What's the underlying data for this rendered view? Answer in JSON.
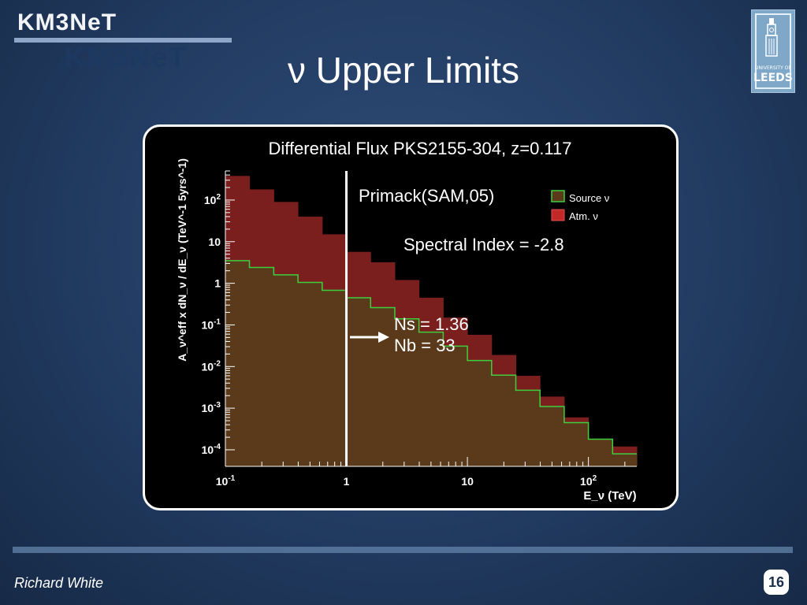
{
  "header": {
    "logo_text": "KM3NeT",
    "logo_shadow_text": "KM3NeT",
    "slide_title": "ν Upper Limits",
    "university_line1": "UNIVERSITY OF",
    "university_line2": "LEEDS"
  },
  "footer": {
    "author": "Richard White",
    "page_number": "16"
  },
  "chart_data": {
    "type": "area",
    "title": "Differential Flux PKS2155-304, z=0.117",
    "ylabel": "A_ν^eff x dN_ν / dE_ν (TeV^-1 5yrs^-1)",
    "xlabel": "E_ν (TeV)",
    "x_scale": "log",
    "y_scale": "log",
    "xlim": [
      0.1,
      251
    ],
    "ylim": [
      4e-05,
      500
    ],
    "x_ticks": [
      {
        "value": 0.1,
        "label": "10^-1"
      },
      {
        "value": 1,
        "label": "1"
      },
      {
        "value": 10,
        "label": "10"
      },
      {
        "value": 100,
        "label": "10^2"
      }
    ],
    "y_ticks": [
      {
        "value": 0.0001,
        "label": "10^-4"
      },
      {
        "value": 0.001,
        "label": "10^-3"
      },
      {
        "value": 0.01,
        "label": "10^-2"
      },
      {
        "value": 0.1,
        "label": "10^-1"
      },
      {
        "value": 1,
        "label": "1"
      },
      {
        "value": 10,
        "label": "10"
      },
      {
        "value": 100,
        "label": "10^2"
      }
    ],
    "bin_edges": [
      0.1,
      0.158,
      0.251,
      0.398,
      0.631,
      1.0,
      1.585,
      2.512,
      3.981,
      6.31,
      10.0,
      15.85,
      25.12,
      39.81,
      63.1,
      100.0,
      158.5,
      251.2
    ],
    "series": [
      {
        "name": "Atm. ν",
        "color": "#7a1e1e",
        "values": [
          380,
          180,
          90,
          40,
          15,
          5.7,
          3.2,
          1.2,
          0.45,
          0.15,
          0.058,
          0.019,
          0.006,
          0.0019,
          0.0006,
          0.00017,
          0.00012
        ]
      },
      {
        "name": "Source ν",
        "color": "#5a3a1a",
        "line_color": "#3ecf3e",
        "values": [
          3.5,
          2.4,
          1.6,
          1.05,
          0.68,
          0.45,
          0.26,
          0.14,
          0.067,
          0.031,
          0.014,
          0.0062,
          0.0027,
          0.0011,
          0.00045,
          0.00018,
          8e-05
        ]
      }
    ],
    "legend": {
      "placement": "top-right"
    },
    "annotations": {
      "model": "Primack(SAM,05)",
      "spectral_index": "Spectral Index = -2.8",
      "ns": "Ns = 1.36",
      "nb": "Nb = 33",
      "cut_energy": 1.0
    }
  }
}
